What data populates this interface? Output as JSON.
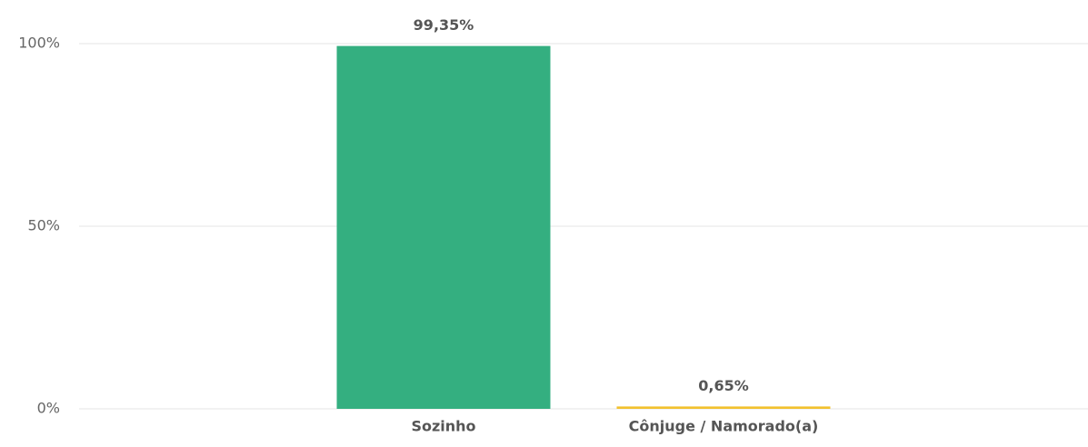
{
  "chart_data": {
    "type": "bar",
    "categories": [
      "Sozinho",
      "Cônjuge / Namorado(a)"
    ],
    "values": [
      99.35,
      0.65
    ],
    "value_labels": [
      "99,35%",
      "0,65%"
    ],
    "colors": [
      "#34af80",
      "#f2c12e"
    ],
    "ylim": [
      0,
      100
    ],
    "yticks": [
      {
        "value": 0,
        "label": "0%"
      },
      {
        "value": 50,
        "label": "50%"
      },
      {
        "value": 100,
        "label": "100%"
      }
    ],
    "grid": true
  }
}
